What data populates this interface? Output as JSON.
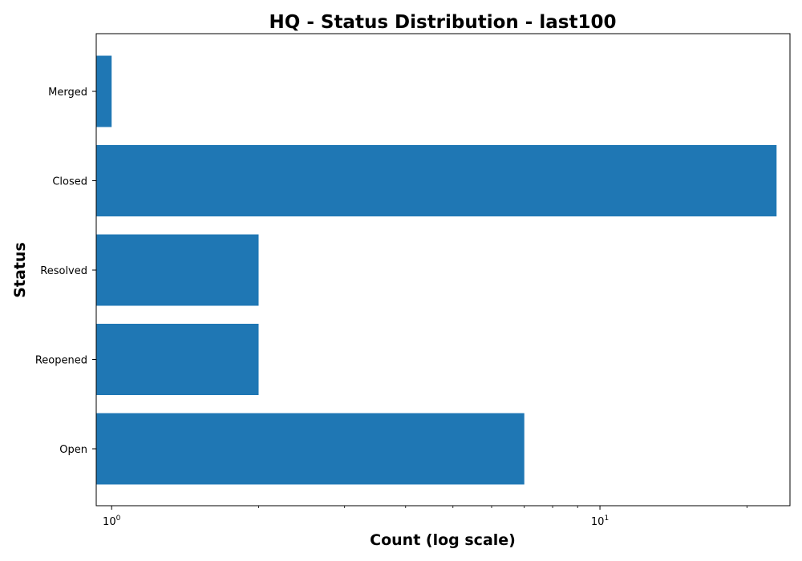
{
  "chart_data": {
    "type": "bar",
    "orientation": "horizontal",
    "title": "HQ - Status Distribution - last100",
    "xlabel": "Count (log scale)",
    "ylabel": "Status",
    "x_scale": "log",
    "xlim": [
      0.93,
      24.5
    ],
    "x_ticks": [
      {
        "value": 1,
        "base": "10",
        "exp": "0"
      },
      {
        "value": 10,
        "base": "10",
        "exp": "1"
      }
    ],
    "categories": [
      "Open",
      "Reopened",
      "Resolved",
      "Closed",
      "Merged"
    ],
    "values": [
      7,
      2,
      2,
      23,
      1
    ],
    "bar_color": "#1f77b4",
    "grid": false,
    "legend": "none"
  }
}
